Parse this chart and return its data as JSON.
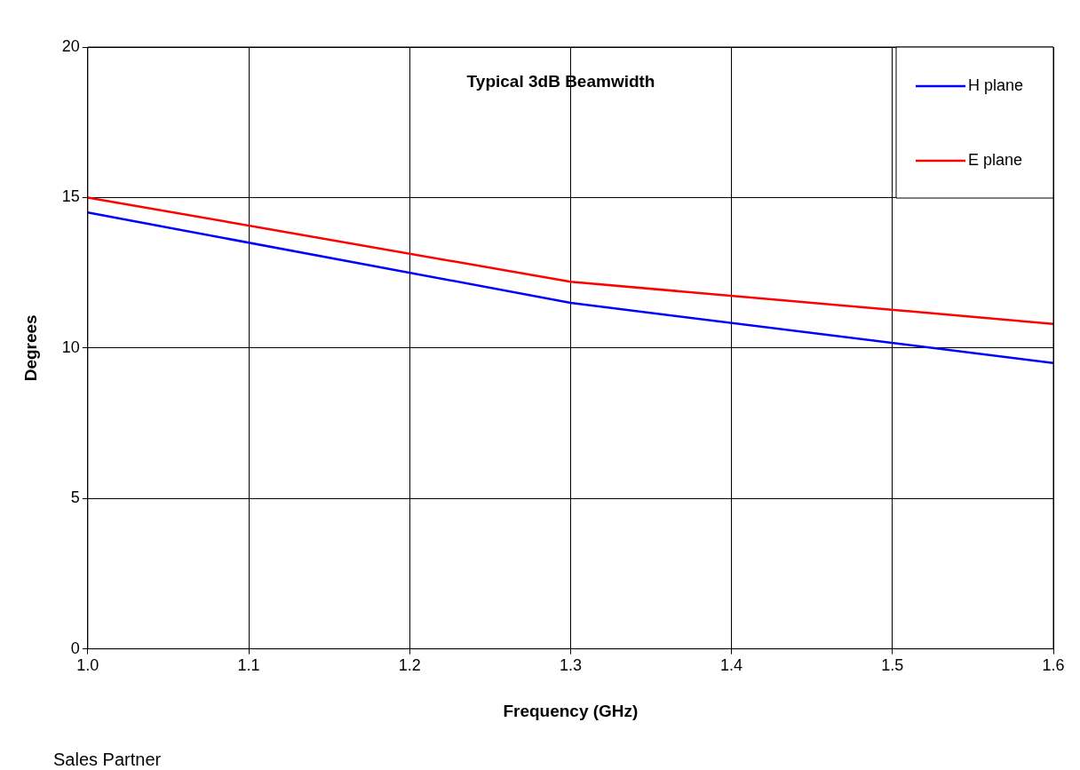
{
  "chart_data": {
    "type": "line",
    "title": "Typical 3dB Beamwidth",
    "xlabel": "Frequency (GHz)",
    "ylabel": "Degrees",
    "xlim": [
      1.0,
      1.6
    ],
    "xticks": [
      {
        "value": 1.0,
        "label": "1.0"
      },
      {
        "value": 1.1,
        "label": "1.1"
      },
      {
        "value": 1.2,
        "label": "1.2"
      },
      {
        "value": 1.3,
        "label": "1.3"
      },
      {
        "value": 1.4,
        "label": "1.4"
      },
      {
        "value": 1.5,
        "label": "1.5"
      },
      {
        "value": 1.6,
        "label": "1.6"
      }
    ],
    "ylim": [
      0,
      20
    ],
    "yticks": [
      0,
      5,
      10,
      15,
      20
    ],
    "x": [
      1.0,
      1.3,
      1.6
    ],
    "series": [
      {
        "name": "H plane",
        "color": "#0000ff",
        "values": [
          14.5,
          11.5,
          9.5
        ]
      },
      {
        "name": "E plane",
        "color": "#ff0000",
        "values": [
          15.0,
          12.2,
          10.8
        ]
      }
    ],
    "grid": true,
    "legend": "top right",
    "marker": "none",
    "line_style": "solid",
    "annotations": [
      "Sales Partner"
    ]
  }
}
